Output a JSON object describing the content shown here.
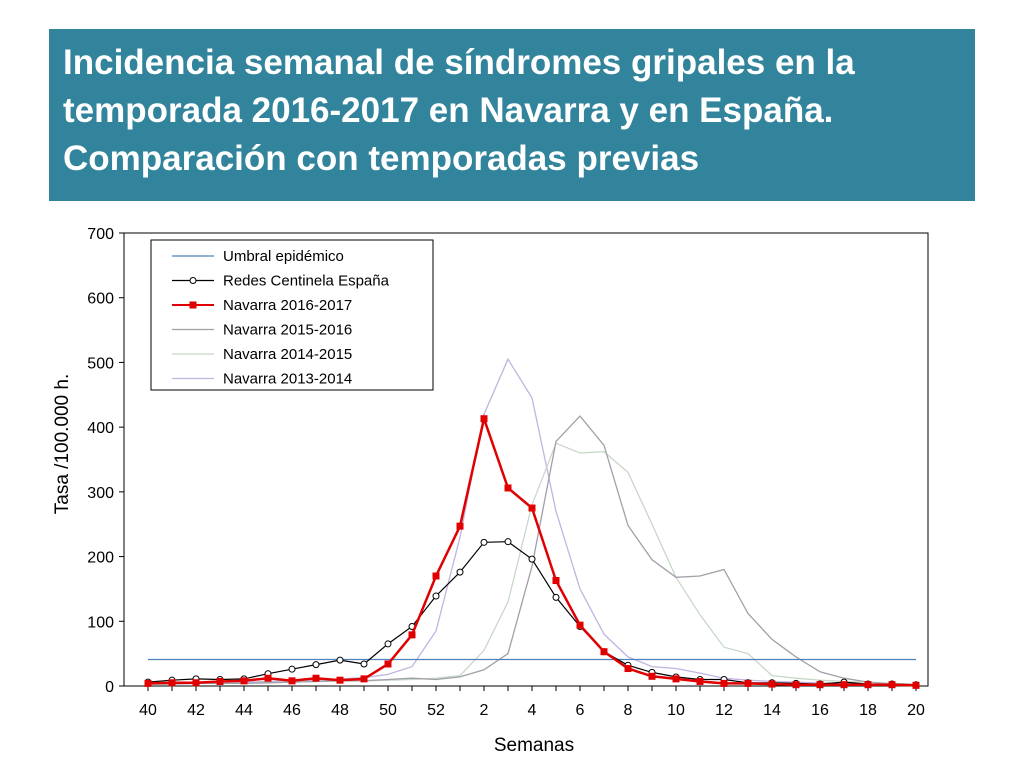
{
  "title": "Incidencia semanal de síndromes gripales en la temporada 2016-2017 en Navarra y en España. Comparación con temporadas previas",
  "chart_data": {
    "type": "line",
    "title": "Incidencia semanal de síndromes gripales en la temporada 2016-2017 en Navarra y en España. Comparación con temporadas previas",
    "xlabel": "Semanas",
    "ylabel": "Tasa /100.000 h.",
    "ylim": [
      0,
      700
    ],
    "yticks": [
      "0",
      "100",
      "200",
      "300",
      "400",
      "500",
      "600",
      "700"
    ],
    "x": [
      "40",
      "41",
      "42",
      "43",
      "44",
      "45",
      "46",
      "47",
      "48",
      "49",
      "50",
      "51",
      "52",
      "1",
      "2",
      "3",
      "4",
      "5",
      "6",
      "7",
      "8",
      "9",
      "10",
      "11",
      "12",
      "13",
      "14",
      "15",
      "16",
      "17",
      "18",
      "19",
      "20"
    ],
    "xtick_labels": [
      "40",
      "42",
      "44",
      "46",
      "48",
      "50",
      "52",
      "2",
      "4",
      "6",
      "8",
      "10",
      "12",
      "14",
      "16",
      "18",
      "20"
    ],
    "grid": false,
    "legend_position": "top-left",
    "series": [
      {
        "name": "Umbral epidémico",
        "color": "#4f81bd",
        "marker": "none",
        "values": [
          41,
          41,
          41,
          41,
          41,
          41,
          41,
          41,
          41,
          41,
          41,
          41,
          41,
          41,
          41,
          41,
          41,
          41,
          41,
          41,
          41,
          41,
          41,
          41,
          41,
          41,
          41,
          41,
          41,
          41,
          41,
          41,
          41
        ]
      },
      {
        "name": "Redes Centinela España",
        "color": "#000000",
        "marker": "circle",
        "values": [
          6,
          9,
          11,
          10,
          11,
          19,
          26,
          33,
          40,
          34,
          65,
          92,
          139,
          176,
          222,
          223,
          196,
          137,
          92,
          53,
          32,
          21,
          14,
          10,
          10,
          5,
          5,
          4,
          3,
          6,
          3,
          3,
          2
        ]
      },
      {
        "name": "Navarra 2016-2017",
        "color": "#e00000",
        "marker": "square",
        "values": [
          4,
          5,
          5,
          7,
          8,
          12,
          8,
          12,
          9,
          11,
          34,
          79,
          170,
          247,
          413,
          306,
          275,
          163,
          94,
          53,
          27,
          15,
          11,
          7,
          4,
          4,
          3,
          2,
          2,
          2,
          2,
          2,
          1
        ]
      },
      {
        "name": "Navarra 2015-2016",
        "color": "#a0a0a8",
        "marker": "none",
        "values": [
          3,
          3,
          4,
          4,
          4,
          5,
          6,
          7,
          8,
          8,
          10,
          12,
          10,
          14,
          25,
          50,
          185,
          378,
          417,
          372,
          248,
          195,
          168,
          170,
          180,
          112,
          72,
          45,
          22,
          12,
          6,
          3,
          2
        ]
      },
      {
        "name": "Navarra 2014-2015",
        "color": "#c8d8c8",
        "marker": "none",
        "values": [
          3,
          3,
          4,
          4,
          4,
          5,
          6,
          7,
          8,
          8,
          9,
          10,
          12,
          16,
          55,
          130,
          280,
          375,
          360,
          362,
          330,
          250,
          168,
          110,
          60,
          50,
          16,
          12,
          9,
          7,
          6,
          4,
          3
        ]
      },
      {
        "name": "Navarra 2013-2014",
        "color": "#c0b4e0",
        "marker": "none",
        "values": [
          3,
          4,
          5,
          5,
          6,
          7,
          8,
          9,
          11,
          13,
          18,
          30,
          85,
          230,
          420,
          505,
          445,
          270,
          150,
          80,
          45,
          30,
          27,
          20,
          12,
          9,
          7,
          6,
          5,
          4,
          3,
          3,
          2
        ]
      }
    ]
  }
}
